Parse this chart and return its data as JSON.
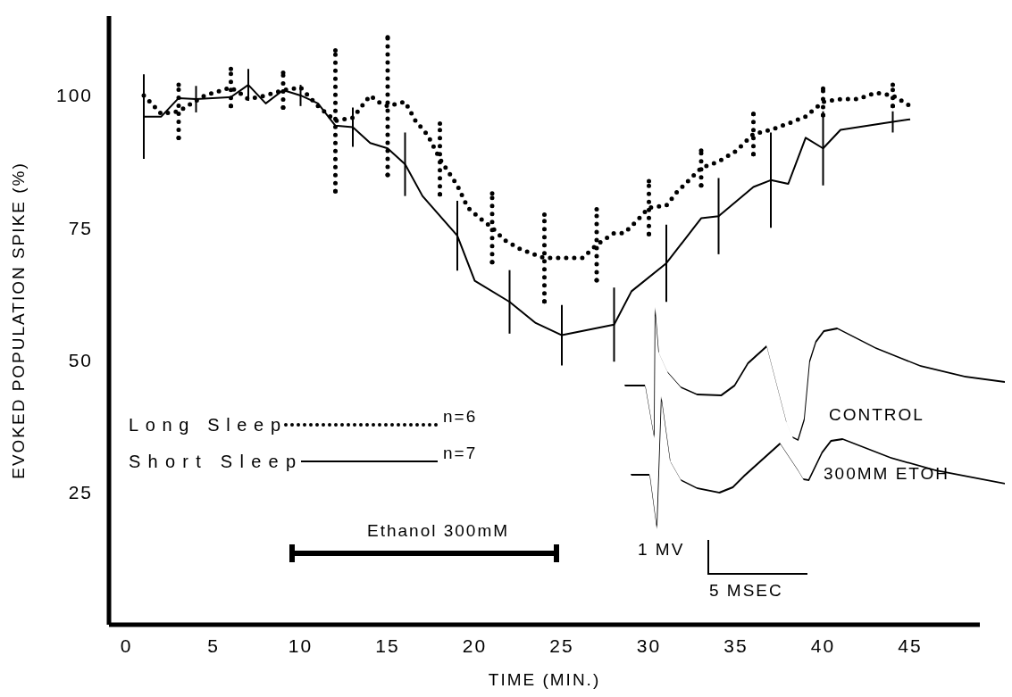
{
  "chart_data": {
    "type": "line",
    "xlabel": "TIME (MIN.)",
    "ylabel": "EVOKED POPULATION SPIKE (%)",
    "xlim": [
      -1,
      49
    ],
    "xticks": [
      0,
      5,
      10,
      15,
      20,
      25,
      30,
      35,
      40,
      45
    ],
    "ylim": [
      0,
      115
    ],
    "yticks": [
      25,
      50,
      75,
      100
    ],
    "legend": "left",
    "marker": "none",
    "series": [
      {
        "name": "Long Sleep",
        "color": "#000000",
        "line_style": "dotted",
        "x": [
          1,
          1.5,
          2,
          3,
          3.5,
          4.5,
          5,
          6,
          6.5,
          7,
          8,
          9,
          10,
          11,
          12,
          13,
          14,
          14.5,
          15,
          16,
          16.6,
          17.3,
          18,
          19,
          19.6,
          20.3,
          21,
          21.7,
          22.6,
          23.4,
          24,
          26.2,
          27,
          28,
          28.6,
          29.3,
          30,
          30.5,
          31,
          31.6,
          32.3,
          33,
          34,
          35,
          36,
          37,
          38,
          39,
          40,
          41,
          42,
          43,
          44,
          45
        ],
        "values": [
          100,
          98.3,
          96.5,
          97,
          98,
          100,
          100.5,
          101.5,
          100.5,
          99.3,
          100,
          101,
          101.5,
          98,
          95.2,
          95.8,
          100,
          98.7,
          98,
          98.8,
          95.2,
          92.5,
          88,
          83,
          78.8,
          76.8,
          75,
          72.7,
          71,
          70,
          69.3,
          69.3,
          71.8,
          74,
          74,
          76.3,
          78.8,
          79,
          79.2,
          81.7,
          84,
          86.3,
          87.5,
          89.5,
          92.7,
          93.5,
          94.7,
          96,
          98.8,
          99.3,
          99.3,
          100.5,
          100,
          98
        ],
        "errors": [
          null,
          null,
          null,
          5,
          null,
          null,
          null,
          3.5,
          null,
          null,
          null,
          3.3,
          null,
          null,
          13.3,
          null,
          null,
          null,
          13,
          null,
          null,
          null,
          6.7,
          null,
          null,
          null,
          6.5,
          null,
          null,
          null,
          8.2,
          null,
          6.7,
          null,
          null,
          null,
          5,
          null,
          null,
          null,
          null,
          3.3,
          null,
          null,
          3.8,
          null,
          null,
          null,
          2.5,
          null,
          null,
          null,
          2,
          null
        ]
      },
      {
        "name": "Short Sleep",
        "color": "#000000",
        "line_style": "solid",
        "x": [
          1,
          2,
          3,
          4,
          6,
          7,
          8,
          9,
          10,
          11,
          12,
          13,
          14,
          15,
          16,
          17,
          19,
          20,
          22,
          23.5,
          25,
          28,
          29,
          31,
          33,
          34,
          36,
          37,
          38,
          39,
          40,
          41,
          44,
          45
        ],
        "values": [
          96,
          96,
          99.5,
          99.3,
          99.7,
          102,
          98.5,
          101,
          100,
          98.5,
          94.3,
          94,
          91,
          90,
          87,
          81,
          73.5,
          65,
          61,
          57,
          54.7,
          56.7,
          63,
          68.3,
          76.8,
          77.2,
          82.7,
          84,
          83.3,
          92,
          90,
          93.5,
          95,
          95.5
        ],
        "errors": [
          8,
          null,
          null,
          2.5,
          null,
          3,
          null,
          null,
          2,
          null,
          null,
          3.7,
          null,
          null,
          6,
          null,
          6.6,
          null,
          6,
          null,
          5.7,
          7,
          null,
          7.3,
          null,
          7.2,
          null,
          9,
          null,
          null,
          7,
          null,
          2,
          null
        ]
      }
    ],
    "grid": false,
    "annotations": [
      "n=6",
      "n=7",
      "CONTROL",
      "300MM ETOH",
      "1 MV",
      "5 MSEC",
      "Ethanol 300mM"
    ]
  }
}
